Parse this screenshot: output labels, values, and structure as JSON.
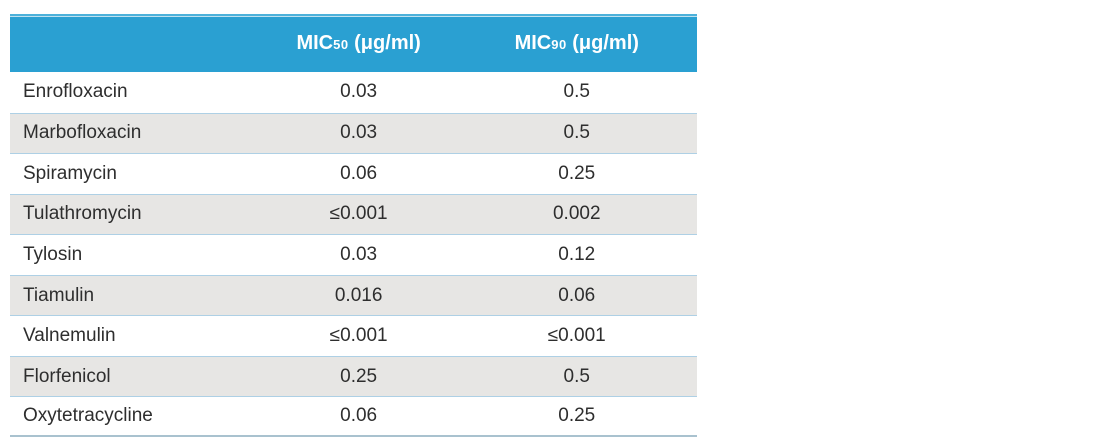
{
  "table": {
    "header": {
      "col1": "",
      "col2": {
        "name": "MIC",
        "sub": "50",
        "unit": " (μg/ml)"
      },
      "col3": {
        "name": "MIC",
        "sub": "90",
        "unit": " (μg/ml)"
      }
    },
    "rows": [
      {
        "name": "Enrofloxacin",
        "mic50": "0.03",
        "mic90": "0.5"
      },
      {
        "name": "Marbofloxacin",
        "mic50": "0.03",
        "mic90": "0.5"
      },
      {
        "name": "Spiramycin",
        "mic50": "0.06",
        "mic90": "0.25"
      },
      {
        "name": "Tulathromycin",
        "mic50": "≤0.001",
        "mic90": "0.002"
      },
      {
        "name": "Tylosin",
        "mic50": "0.03",
        "mic90": "0.12"
      },
      {
        "name": "Tiamulin",
        "mic50": "0.016",
        "mic90": "0.06"
      },
      {
        "name": "Valnemulin",
        "mic50": "≤0.001",
        "mic90": "≤0.001"
      },
      {
        "name": "Florfenicol",
        "mic50": "0.25",
        "mic90": "0.5"
      },
      {
        "name": "Oxytetracycline",
        "mic50": "0.06",
        "mic90": "0.25"
      }
    ],
    "colors": {
      "header_bg": "#2aa0d2",
      "header_top_stripe": "#4db1da",
      "header_text": "#ffffff",
      "row_alt_bg": "#e7e6e4",
      "separator": "#aed0e5",
      "bottom_rule": "#a9c2cf",
      "text": "#2e2e2e"
    }
  },
  "chart_data": {
    "type": "table",
    "columns": [
      "",
      "MIC50 (μg/ml)",
      "MIC90 (μg/ml)"
    ],
    "rows": [
      [
        "Enrofloxacin",
        "0.03",
        "0.5"
      ],
      [
        "Marbofloxacin",
        "0.03",
        "0.5"
      ],
      [
        "Spiramycin",
        "0.06",
        "0.25"
      ],
      [
        "Tulathromycin",
        "≤0.001",
        "0.002"
      ],
      [
        "Tylosin",
        "0.03",
        "0.12"
      ],
      [
        "Tiamulin",
        "0.016",
        "0.06"
      ],
      [
        "Valnemulin",
        "≤0.001",
        "≤0.001"
      ],
      [
        "Florfenicol",
        "0.25",
        "0.5"
      ],
      [
        "Oxytetracycline",
        "0.06",
        "0.25"
      ]
    ]
  }
}
